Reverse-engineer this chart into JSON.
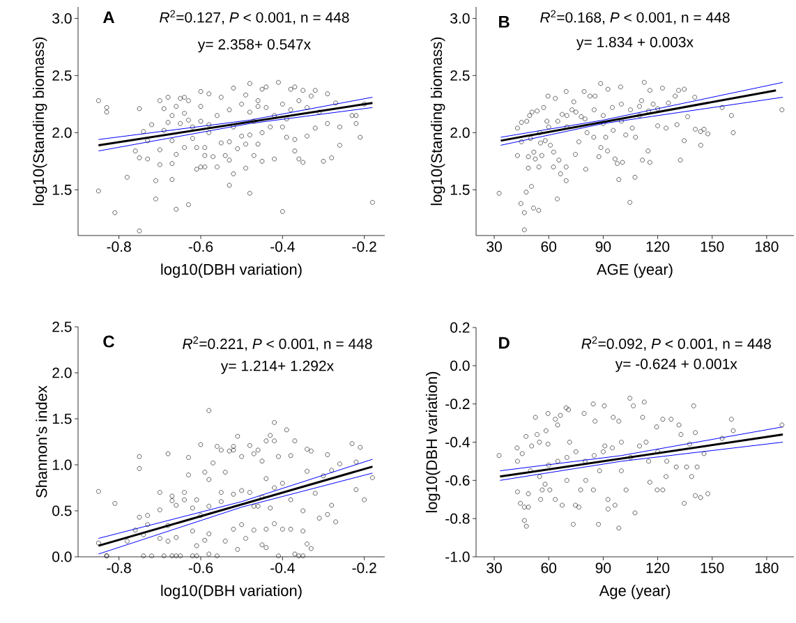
{
  "chart_data": [
    {
      "type": "scatter",
      "xlabel": "log10(DBH variation)",
      "ylabel": "log10(Standing biomass)",
      "annotations": [
        "A",
        "*R*$^{2}$=0.127, *P* < 0.001, n = 448",
        "y= 2.358+ 0.547x"
      ],
      "xlim": [
        -0.9,
        -0.15
      ],
      "ylim": [
        1.1,
        3.1
      ],
      "xticks": [
        -0.8,
        -0.6,
        -0.4,
        -0.2
      ],
      "yticks": [
        1.5,
        {
          "value": 2,
          "label": "2.0"
        },
        2.5,
        {
          "value": 3,
          "label": "3.0"
        }
      ],
      "series": [
        {
          "marker": "circle",
          "color": "#000000",
          "x": [
            -0.85,
            -0.85,
            -0.83,
            -0.83,
            -0.81,
            -0.78,
            -0.76,
            -0.75,
            -0.75,
            -0.75,
            -0.74,
            -0.73,
            -0.73,
            -0.72,
            -0.71,
            -0.71,
            -0.7,
            -0.7,
            -0.7,
            -0.69,
            -0.69,
            -0.68,
            -0.68,
            -0.67,
            -0.67,
            -0.67,
            -0.67,
            -0.66,
            -0.66,
            -0.66,
            -0.65,
            -0.64,
            -0.64,
            -0.64,
            -0.63,
            -0.63,
            -0.63,
            -0.62,
            -0.61,
            -0.61,
            -0.6,
            -0.6,
            -0.6,
            -0.59,
            -0.59,
            -0.59,
            -0.58,
            -0.58,
            -0.57,
            -0.56,
            -0.55,
            -0.55,
            -0.54,
            -0.53,
            -0.53,
            -0.53,
            -0.52,
            -0.52,
            -0.51,
            -0.5,
            -0.49,
            -0.49,
            -0.49,
            -0.48,
            -0.48,
            -0.48,
            -0.47,
            -0.45,
            -0.46,
            -0.45,
            -0.46,
            -0.45,
            -0.44,
            -0.42,
            -0.41,
            -0.4,
            -0.4,
            -0.39,
            -0.38,
            -0.37,
            -0.37,
            -0.37,
            -0.36,
            -0.35,
            -0.35,
            -0.34,
            -0.33,
            -0.32,
            -0.32,
            -0.3,
            -0.29,
            -0.29,
            -0.28,
            -0.27,
            -0.26,
            -0.26,
            -0.23,
            -0.22,
            -0.22,
            -0.21,
            -0.2,
            -0.18,
            -0.56,
            -0.53,
            -0.5,
            -0.48,
            -0.46,
            -0.44,
            -0.42,
            -0.4,
            -0.38,
            -0.36,
            -0.34,
            -0.31,
            -0.6,
            -0.62,
            -0.65,
            -0.58,
            -0.52,
            -0.47,
            -0.43,
            -0.39
          ],
          "values": [
            2.28,
            1.49,
            2.22,
            2.18,
            1.3,
            1.61,
            1.84,
            2.21,
            1.78,
            1.14,
            2.01,
            1.77,
            1.93,
            2.07,
            1.42,
            1.58,
            1.72,
            2.28,
            1.85,
            2.21,
            2.02,
            2.31,
            2.09,
            1.73,
            2.15,
            1.59,
            1.93,
            1.81,
            2.23,
            1.33,
            2.3,
            1.87,
            2.17,
            2.31,
            1.37,
            2.11,
            2.28,
            1.95,
            1.87,
            1.68,
            2.36,
            1.7,
            2.23,
            1.87,
            1.7,
            1.8,
            2.34,
            2.07,
            1.79,
            1.7,
            2.31,
            1.91,
            1.8,
            1.76,
            1.54,
            1.92,
            2.39,
            1.64,
            1.86,
            1.97,
            1.9,
            1.69,
            2.33,
            1.47,
            2.43,
            1.98,
            1.8,
            2.38,
            1.9,
            1.75,
            2.23,
            2.0,
            2.4,
            1.77,
            2.44,
            1.31,
            2.05,
            1.96,
            2.38,
            1.94,
            1.84,
            2.4,
            1.77,
            1.74,
            2.37,
            1.97,
            2.32,
            2.04,
            2.37,
            1.75,
            2.34,
            2.08,
            1.78,
            2.26,
            1.89,
            2.05,
            2.15,
            2.08,
            2.15,
            1.96,
            2.25,
            1.39,
            2.15,
            2.2,
            2.25,
            2.18,
            2.28,
            2.22,
            2.15,
            2.25,
            2.2,
            2.28,
            2.22,
            2.18,
            2.1,
            2.05,
            2.08,
            2.0,
            2.05,
            2.1,
            2.05,
            2.12
          ]
        },
        {
          "type": "line",
          "color": "#000000",
          "x": [
            -0.85,
            -0.18
          ],
          "values": [
            1.89,
            2.26
          ]
        },
        {
          "type": "line",
          "color": "#0000ff",
          "x": [
            -0.85,
            -0.48,
            -0.18
          ],
          "values": [
            1.94,
            2.11,
            2.31
          ]
        },
        {
          "type": "line",
          "color": "#0000ff",
          "x": [
            -0.85,
            -0.48,
            -0.18
          ],
          "values": [
            1.84,
            2.08,
            2.22
          ]
        }
      ]
    },
    {
      "type": "scatter",
      "xlabel": "AGE (year)",
      "ylabel": "log10(Standing biomass)",
      "annotations": [
        "B",
        "*R*$^{2}$=0.168, *P* < 0.001, n = 448",
        "y= 1.834 + 0.003x"
      ],
      "xlim": [
        20,
        195
      ],
      "ylim": [
        1.1,
        3.1
      ],
      "xticks": [
        30,
        60,
        90,
        120,
        150,
        180
      ],
      "yticks": [
        1.5,
        {
          "value": 2,
          "label": "2.0"
        },
        2.5,
        {
          "value": 3,
          "label": "3.0"
        }
      ],
      "series": [
        {
          "marker": "circle",
          "color": "#000000",
          "x": [
            32.7,
            42.8,
            42.8,
            44.7,
            45,
            46.6,
            46.6,
            47.6,
            47.9,
            48.8,
            48.8,
            49.5,
            50.5,
            50.8,
            51.6,
            51.8,
            52.6,
            53.6,
            54.5,
            54.6,
            55.5,
            56.2,
            57.2,
            58.1,
            59,
            59.6,
            60.9,
            62.6,
            62.7,
            63.6,
            64.7,
            65.6,
            66.5,
            67.4,
            69.6,
            69.6,
            69.6,
            72.8,
            73.8,
            74.7,
            76.6,
            77.9,
            79.5,
            80.4,
            81.1,
            82.7,
            84.8,
            85.5,
            87.6,
            88.6,
            88.7,
            91.4,
            92.4,
            92.6,
            95.5,
            96.5,
            97.7,
            98.6,
            99.6,
            100.6,
            102.4,
            104.7,
            106,
            107.5,
            107.8,
            111.1,
            111.6,
            112.6,
            114.7,
            115.7,
            115.7,
            117.5,
            120,
            122.6,
            124.6,
            125.9,
            129.6,
            130.6,
            131.5,
            132.5,
            134.6,
            134.6,
            136.5,
            140.4,
            140.7,
            143.6,
            143.7,
            145.5,
            147.6,
            155.5,
            160.6,
            161.6,
            188.4,
            60,
            65,
            70,
            75,
            80,
            85,
            90,
            95,
            100,
            105,
            110,
            115,
            120,
            100,
            90,
            70,
            55,
            50,
            45,
            110
          ],
          "values": [
            1.47,
            2.04,
            1.8,
            1.38,
            2.09,
            1.3,
            1.15,
            1.48,
            2.1,
            1.69,
            1.79,
            2.15,
            1.53,
            2.18,
            1.34,
            1.83,
            1.77,
            2.19,
            1.32,
            1.7,
            1.91,
            1.8,
            2.22,
            1.93,
            2.1,
            2.32,
            1.89,
            1.7,
            1.83,
            2.3,
            1.42,
            1.76,
            1.64,
            2.16,
            2.36,
            1.58,
            1.7,
            2.2,
            2.27,
            1.81,
            1.92,
            2.14,
            2.36,
            1.68,
            2.0,
            2.32,
            1.96,
            2.32,
            1.79,
            2.43,
            1.87,
            1.96,
            1.84,
            2.38,
            2.02,
            1.77,
            1.73,
            1.59,
            2.4,
            1.74,
            1.98,
            1.39,
            2.04,
            1.61,
            1.96,
            2.28,
            1.76,
            2.44,
            1.84,
            1.74,
            2.37,
            2.25,
            2.06,
            2.39,
            2.04,
            2.26,
            2.32,
            2.07,
            2.37,
            1.76,
            2.38,
            1.93,
            2.14,
            2.31,
            2.03,
            2.01,
            1.89,
            2.03,
            1.99,
            2.22,
            2.15,
            2.0,
            2.2,
            2.05,
            2.1,
            2.15,
            2.18,
            2.12,
            2.2,
            2.15,
            2.22,
            2.25,
            2.2,
            2.23,
            2.19,
            2.21,
            2.1,
            2.08,
            2.05,
            2.0,
            1.95,
            1.92,
            2.15
          ]
        },
        {
          "type": "line",
          "color": "#000000",
          "x": [
            33.6,
            185.1
          ],
          "values": [
            1.93,
            2.37
          ]
        },
        {
          "type": "line",
          "color": "#0000ff",
          "x": [
            33.6,
            90,
            188.9
          ],
          "values": [
            1.96,
            2.11,
            2.44
          ]
        },
        {
          "type": "line",
          "color": "#0000ff",
          "x": [
            33.6,
            90,
            188.9
          ],
          "values": [
            1.89,
            2.08,
            2.31
          ]
        }
      ]
    },
    {
      "type": "scatter",
      "xlabel": "log10(DBH variation)",
      "ylabel": "Shannon's index",
      "annotations": [
        "C",
        "*R*$^{2}$=0.221, *P* < 0.001, n = 448",
        "y= 1.214+ 1.292x"
      ],
      "xlim": [
        -0.9,
        -0.15
      ],
      "ylim": [
        0,
        2.5
      ],
      "xticks": [
        -0.8,
        -0.6,
        -0.4,
        -0.2
      ],
      "yticks": [
        {
          "value": 0,
          "label": "0.0"
        },
        0.5,
        {
          "value": 1,
          "label": "1.0"
        },
        1.5,
        {
          "value": 2,
          "label": "2.0"
        },
        2.5
      ],
      "series": [
        {
          "marker": "circle",
          "color": "#000000",
          "x": [
            -0.85,
            -0.85,
            -0.83,
            -0.83,
            -0.81,
            -0.78,
            -0.76,
            -0.75,
            -0.75,
            -0.75,
            -0.74,
            -0.74,
            -0.73,
            -0.73,
            -0.72,
            -0.7,
            -0.7,
            -0.7,
            -0.69,
            -0.68,
            -0.68,
            -0.68,
            -0.67,
            -0.67,
            -0.67,
            -0.66,
            -0.66,
            -0.66,
            -0.65,
            -0.64,
            -0.64,
            -0.63,
            -0.63,
            -0.62,
            -0.62,
            -0.62,
            -0.61,
            -0.61,
            -0.61,
            -0.6,
            -0.59,
            -0.59,
            -0.58,
            -0.58,
            -0.58,
            -0.58,
            -0.57,
            -0.56,
            -0.56,
            -0.55,
            -0.55,
            -0.54,
            -0.54,
            -0.53,
            -0.52,
            -0.52,
            -0.52,
            -0.51,
            -0.51,
            -0.5,
            -0.5,
            -0.49,
            -0.48,
            -0.47,
            -0.47,
            -0.47,
            -0.46,
            -0.45,
            -0.45,
            -0.44,
            -0.44,
            -0.44,
            -0.43,
            -0.43,
            -0.42,
            -0.42,
            -0.42,
            -0.41,
            -0.41,
            -0.4,
            -0.39,
            -0.38,
            -0.38,
            -0.37,
            -0.37,
            -0.36,
            -0.35,
            -0.35,
            -0.34,
            -0.35,
            -0.34,
            -0.34,
            -0.33,
            -0.33,
            -0.32,
            -0.31,
            -0.3,
            -0.29,
            -0.29,
            -0.28,
            -0.28,
            -0.27,
            -0.26,
            -0.23,
            -0.22,
            -0.22,
            -0.21,
            -0.2,
            -0.18,
            -0.5,
            -0.48,
            -0.45,
            -0.42,
            -0.52,
            -0.55,
            -0.58,
            -0.4,
            -0.38,
            -0.6,
            -0.46,
            -0.44
          ],
          "values": [
            0.15,
            0.71,
            0.01,
            0.01,
            0.58,
            0.17,
            0.29,
            0.43,
            0.96,
            1.09,
            0.24,
            0.01,
            0.45,
            0.35,
            0.01,
            0.7,
            0.51,
            0.2,
            0.01,
            0.17,
            0.34,
            1.12,
            0.61,
            0.01,
            0.66,
            0.56,
            0.21,
            0.01,
            0.01,
            0.62,
            0.7,
            1.08,
            0.89,
            0.53,
            0.01,
            0.28,
            0.01,
            0.62,
            0.12,
            1.22,
            0.92,
            0.18,
            1.59,
            0.84,
            0.03,
            0.25,
            1.02,
            0.01,
            1.2,
            0.7,
            1.16,
            0.92,
            0.17,
            1.15,
            0.3,
            1.16,
            1.2,
            1.31,
            0.08,
            1.09,
            0.35,
            0.2,
            1.21,
            0.55,
            0.29,
            1.12,
            1.16,
            0.13,
            1.04,
            0.3,
            0.1,
            1.26,
            1.32,
            0.53,
            1.26,
            1.46,
            0.36,
            1.09,
            0.01,
            0.3,
            1.38,
            1.1,
            0.3,
            0.03,
            1.26,
            0.01,
            0.01,
            0.5,
            1.17,
            0.28,
            0.14,
            0.93,
            0.09,
            1.15,
            0.69,
            0.42,
            0.88,
            0.46,
            1.11,
            0.94,
            0.56,
            0.38,
            1.01,
            1.23,
            1.03,
            0.73,
            1.19,
            0.62,
            0.86,
            0.72,
            0.7,
            0.65,
            0.75,
            0.68,
            0.6,
            0.55,
            0.8,
            0.62,
            0.45,
            0.55,
            0.85
          ]
        },
        {
          "type": "line",
          "color": "#000000",
          "x": [
            -0.85,
            -0.18
          ],
          "values": [
            0.12,
            0.98
          ]
        },
        {
          "type": "line",
          "color": "#0000ff",
          "x": [
            -0.85,
            -0.5,
            -0.18
          ],
          "values": [
            0.2,
            0.6,
            1.06
          ]
        },
        {
          "type": "line",
          "color": "#0000ff",
          "x": [
            -0.85,
            -0.5,
            -0.18
          ],
          "values": [
            0.03,
            0.54,
            0.91
          ]
        }
      ]
    },
    {
      "type": "scatter",
      "xlabel": "Age (year)",
      "ylabel": "log10(DBH variation)",
      "annotations": [
        "D",
        "*R*$^{2}$=0.092, *P* < 0.001, n = 448",
        "y= -0.624 + 0.001x"
      ],
      "xlim": [
        20,
        195
      ],
      "ylim": [
        -1,
        0.2
      ],
      "xticks": [
        30,
        60,
        90,
        120,
        150,
        180
      ],
      "yticks": [
        {
          "value": -1,
          "label": "-1.0"
        },
        -0.8,
        -0.6,
        -0.4,
        -0.2,
        {
          "value": 0,
          "label": "0.0"
        },
        0.2
      ],
      "series": [
        {
          "marker": "circle",
          "color": "#000000",
          "x": [
            32.7,
            42.6,
            42.8,
            42.8,
            44.4,
            45.4,
            46.6,
            46.6,
            47.5,
            47.7,
            48.8,
            48.8,
            50.6,
            52.7,
            53.6,
            54.9,
            55.5,
            56.4,
            58.5,
            59.6,
            59.6,
            60.6,
            63.6,
            63.6,
            64.9,
            66.4,
            67.4,
            69.6,
            70.9,
            71.5,
            73.5,
            74.7,
            76.6,
            77.6,
            79.5,
            80.4,
            84.5,
            84.6,
            85.5,
            87.4,
            90.6,
            90.9,
            92.6,
            92.7,
            95.5,
            96.5,
            98.6,
            98.6,
            102.6,
            104.7,
            106.6,
            107.5,
            111.7,
            112.6,
            113.6,
            115.7,
            119.4,
            119.7,
            122.8,
            122.8,
            124.6,
            127.4,
            130.2,
            131.7,
            132.8,
            134.6,
            135.9,
            137.6,
            138.7,
            139.8,
            140.7,
            140.7,
            141.7,
            143.6,
            145.5,
            147.6,
            155.5,
            160.6,
            161.6,
            188.4,
            50,
            55,
            60,
            65,
            70,
            75,
            80,
            85,
            90,
            95,
            100,
            105,
            110,
            115,
            120,
            125,
            58,
            70,
            88,
            100
          ],
          "values": [
            -0.47,
            -0.43,
            -0.5,
            -0.66,
            -0.72,
            -0.46,
            -0.74,
            -0.81,
            -0.37,
            -0.84,
            -0.74,
            -0.67,
            -0.42,
            -0.27,
            -0.36,
            -0.4,
            -0.7,
            -0.65,
            -0.34,
            -0.25,
            -0.41,
            -0.65,
            -0.28,
            -0.7,
            -0.31,
            -0.26,
            -0.73,
            -0.22,
            -0.23,
            -0.4,
            -0.83,
            -0.73,
            -0.74,
            -0.65,
            -0.25,
            -0.6,
            -0.2,
            -0.65,
            -0.29,
            -0.83,
            -0.21,
            -0.42,
            -0.7,
            -0.75,
            -0.27,
            -0.73,
            -0.29,
            -0.85,
            -0.65,
            -0.17,
            -0.21,
            -0.77,
            -0.27,
            -0.19,
            -0.4,
            -0.61,
            -0.32,
            -0.65,
            -0.28,
            -0.65,
            -0.58,
            -0.28,
            -0.53,
            -0.31,
            -0.36,
            -0.72,
            -0.53,
            -0.41,
            -0.58,
            -0.21,
            -0.35,
            -0.68,
            -0.53,
            -0.69,
            -0.46,
            -0.67,
            -0.38,
            -0.28,
            -0.34,
            -0.31,
            -0.55,
            -0.58,
            -0.52,
            -0.5,
            -0.48,
            -0.45,
            -0.5,
            -0.47,
            -0.45,
            -0.43,
            -0.4,
            -0.48,
            -0.42,
            -0.5,
            -0.45,
            -0.5,
            -0.62,
            -0.6,
            -0.55,
            -0.55
          ]
        },
        {
          "type": "line",
          "color": "#000000",
          "x": [
            33.2,
            188.9
          ],
          "values": [
            -0.58,
            -0.36
          ]
        },
        {
          "type": "line",
          "color": "#0000ff",
          "x": [
            33.2,
            100,
            188.9
          ],
          "values": [
            -0.55,
            -0.47,
            -0.32
          ]
        },
        {
          "type": "line",
          "color": "#0000ff",
          "x": [
            33.2,
            100,
            188.9
          ],
          "values": [
            -0.6,
            -0.5,
            -0.4
          ]
        }
      ]
    }
  ]
}
